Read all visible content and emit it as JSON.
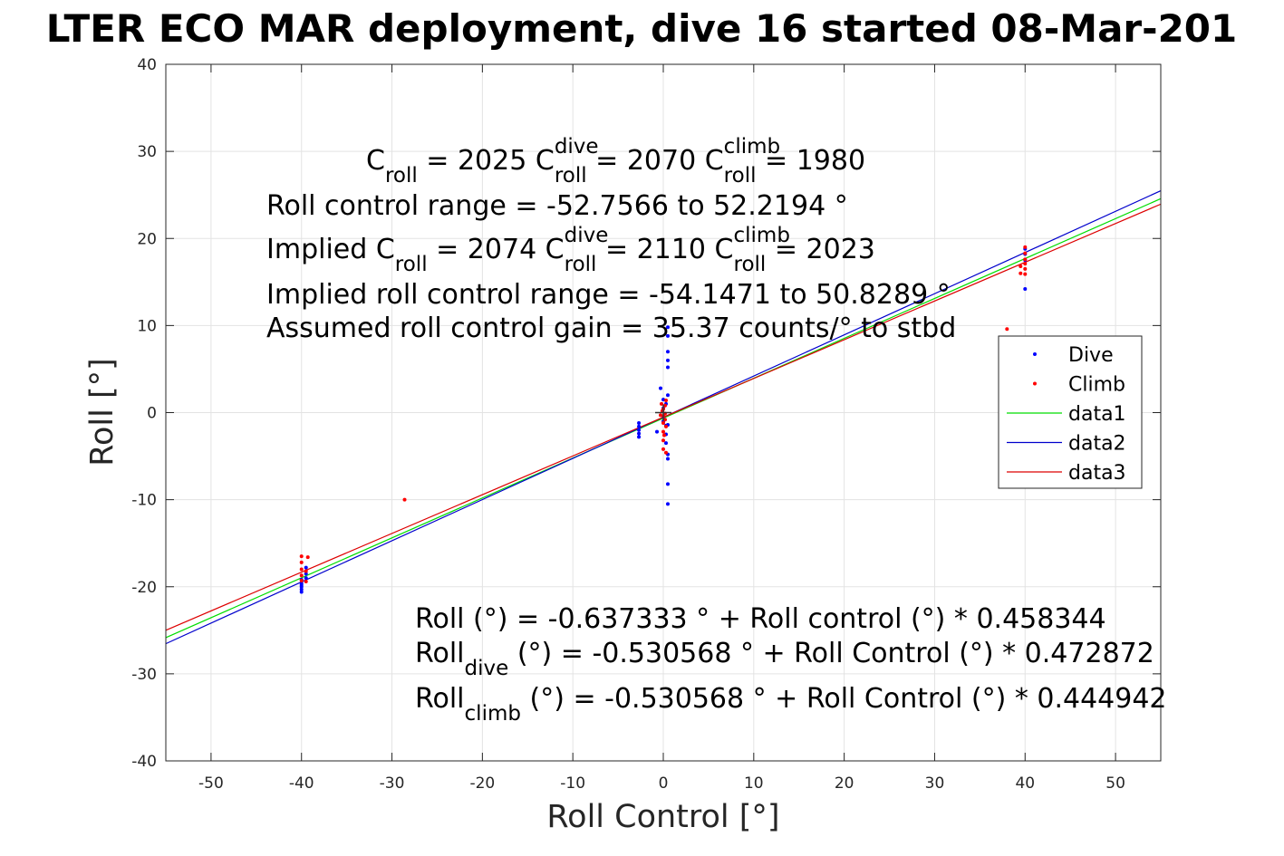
{
  "chart_data": {
    "type": "scatter",
    "title": "LTER ECO MAR deployment, dive 16 started 08-Mar-201",
    "xlabel": "Roll Control [°]",
    "ylabel": "Roll [°]",
    "xlim": [
      -55,
      55
    ],
    "ylim": [
      -40,
      40
    ],
    "xticks": [
      -50,
      -40,
      -30,
      -20,
      -10,
      0,
      10,
      20,
      30,
      40,
      50
    ],
    "yticks": [
      -40,
      -30,
      -20,
      -10,
      0,
      10,
      20,
      30,
      40
    ],
    "xtick_labels": [
      "-50",
      "-40",
      "-30",
      "-20",
      "-10",
      "0",
      "10",
      "20",
      "30",
      "40",
      "50"
    ],
    "ytick_labels": [
      "-40",
      "-30",
      "-20",
      "-10",
      "0",
      "10",
      "20",
      "30",
      "40"
    ],
    "grid": true,
    "legend_position": "right",
    "series": [
      {
        "name": "Dive",
        "kind": "points",
        "color": "#0000ff",
        "points": [
          [
            -40,
            -19.2
          ],
          [
            -40,
            -19.6
          ],
          [
            -40,
            -20.0
          ],
          [
            -40,
            -20.3
          ],
          [
            -40,
            -20.6
          ],
          [
            -40,
            -19.8
          ],
          [
            -39.5,
            -17.8
          ],
          [
            -39.5,
            -18.5
          ],
          [
            -39.5,
            -19.0
          ],
          [
            -2.7,
            -1.2
          ],
          [
            -2.7,
            -1.6
          ],
          [
            -2.7,
            -2.0
          ],
          [
            -2.7,
            -2.4
          ],
          [
            -2.7,
            -2.8
          ],
          [
            -0.7,
            -2.2
          ],
          [
            -0.3,
            2.8
          ],
          [
            0,
            1.5
          ],
          [
            0,
            0.5
          ],
          [
            0,
            -0.5
          ],
          [
            0,
            -1.0
          ],
          [
            0.3,
            1.0
          ],
          [
            0.3,
            -1.5
          ],
          [
            0.3,
            -2.5
          ],
          [
            0.3,
            -3.5
          ],
          [
            0.5,
            9.8
          ],
          [
            0.5,
            8.8
          ],
          [
            0.5,
            7.0
          ],
          [
            0.5,
            6.0
          ],
          [
            0.5,
            5.2
          ],
          [
            0.5,
            2.0
          ],
          [
            0.5,
            -4.8
          ],
          [
            0.5,
            -5.3
          ],
          [
            0.5,
            -8.2
          ],
          [
            0.5,
            -10.5
          ],
          [
            0.5,
            -1.4
          ],
          [
            40,
            14.2
          ],
          [
            40,
            17.5
          ],
          [
            40,
            18.2
          ],
          [
            40,
            18.8
          ]
        ]
      },
      {
        "name": "Climb",
        "kind": "points",
        "color": "#ff0000",
        "points": [
          [
            -40,
            -16.5
          ],
          [
            -40,
            -17.2
          ],
          [
            -40,
            -18.0
          ],
          [
            -40,
            -18.7
          ],
          [
            -40,
            -19.3
          ],
          [
            -39.3,
            -16.6
          ],
          [
            -39.5,
            -18.2
          ],
          [
            -39.5,
            -19.4
          ],
          [
            -28.6,
            -10.0
          ],
          [
            -0.3,
            -0.3
          ],
          [
            -0.2,
            1.0
          ],
          [
            0,
            0.4
          ],
          [
            0,
            -0.4
          ],
          [
            0,
            -1.2
          ],
          [
            0,
            -2.2
          ],
          [
            0,
            -3.2
          ],
          [
            0,
            -4.2
          ],
          [
            0.2,
            0.8
          ],
          [
            0.2,
            -0.8
          ],
          [
            0.3,
            1.4
          ],
          [
            0.3,
            -1.6
          ],
          [
            0.3,
            -4.6
          ],
          [
            0.1,
            -2.6
          ],
          [
            -0.1,
            0.2
          ],
          [
            0.2,
            -0.1
          ],
          [
            38,
            9.6
          ],
          [
            39.5,
            16.0
          ],
          [
            39.5,
            16.8
          ],
          [
            40,
            15.9
          ],
          [
            40,
            16.5
          ],
          [
            40,
            17.1
          ],
          [
            40,
            17.6
          ],
          [
            40,
            18.3
          ],
          [
            40,
            19.0
          ]
        ]
      },
      {
        "name": "data1",
        "kind": "line",
        "color": "#00dd00",
        "x": [
          -55,
          55
        ],
        "y": [
          -25.85,
          24.57
        ]
      },
      {
        "name": "data2",
        "kind": "line",
        "color": "#0000cc",
        "x": [
          -55,
          55
        ],
        "y": [
          -26.54,
          25.48
        ]
      },
      {
        "name": "data3",
        "kind": "line",
        "color": "#dd0000",
        "x": [
          -55,
          55
        ],
        "y": [
          -25.0,
          23.94
        ]
      }
    ],
    "annotations": [
      {
        "parts": [
          {
            "t": "C"
          },
          {
            "t": "roll",
            "b": "sub"
          },
          {
            "t": " = 2025       C"
          },
          {
            "t": "dive",
            "b": "sup"
          },
          {
            "t": "roll",
            "b": "sub"
          },
          {
            "t": " = 2070       C"
          },
          {
            "t": "climb",
            "b": "sup"
          },
          {
            "t": "roll",
            "b": "sub"
          },
          {
            "t": " = 1980"
          }
        ]
      },
      {
        "parts": [
          {
            "t": "Roll control range = -52.7566 to 52.2194 °"
          }
        ]
      },
      {
        "parts": [
          {
            "t": "Implied C"
          },
          {
            "t": "roll",
            "b": "sub"
          },
          {
            "t": " = 2074       C"
          },
          {
            "t": "dive",
            "b": "sup"
          },
          {
            "t": "roll",
            "b": "sub"
          },
          {
            "t": " = 2110       C"
          },
          {
            "t": "climb",
            "b": "sup"
          },
          {
            "t": "roll",
            "b": "sub"
          },
          {
            "t": " = 2023"
          }
        ]
      },
      {
        "parts": [
          {
            "t": "Implied roll control range = -54.1471 to 50.8289 °"
          }
        ]
      },
      {
        "parts": [
          {
            "t": "Assumed roll control gain = 35.37 counts/° to stbd"
          }
        ]
      },
      {
        "parts": [
          {
            "t": "Roll (°) = -0.637333 ° + Roll control (°) * 0.458344"
          }
        ]
      },
      {
        "parts": [
          {
            "t": "Roll"
          },
          {
            "t": "dive",
            "b": "sub"
          },
          {
            "t": " (°) = -0.530568 ° + Roll Control (°) * 0.472872"
          }
        ]
      },
      {
        "parts": [
          {
            "t": "Roll"
          },
          {
            "t": "climb",
            "b": "sub"
          },
          {
            "t": " (°) = -0.530568 ° + Roll Control (°) * 0.444942"
          }
        ]
      }
    ]
  }
}
